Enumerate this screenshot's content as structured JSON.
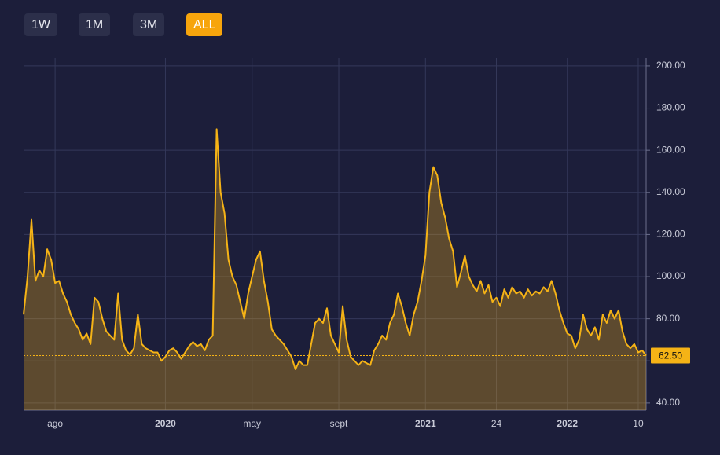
{
  "buttons": [
    "1W",
    "1M",
    "3M",
    "ALL"
  ],
  "active_button": "ALL",
  "chart_data": {
    "type": "area",
    "color": "#f5b316",
    "grid": true,
    "y_axis_side": "right",
    "xlim": [
      0,
      158
    ],
    "ylim": [
      36.6,
      203.7
    ],
    "xticks": [
      {
        "value": 8,
        "label": "ago"
      },
      {
        "value": 36,
        "label": "2020"
      },
      {
        "value": 58,
        "label": "may"
      },
      {
        "value": 80,
        "label": "sept"
      },
      {
        "value": 102,
        "label": "2021"
      },
      {
        "value": 120,
        "label": "24"
      },
      {
        "value": 138,
        "label": "2022"
      },
      {
        "value": 156,
        "label": "10"
      }
    ],
    "yticks": [
      {
        "value": 40,
        "label": "40.00"
      },
      {
        "value": 60,
        "label": "60.00"
      },
      {
        "value": 80,
        "label": "80.00"
      },
      {
        "value": 100,
        "label": "100.00"
      },
      {
        "value": 120,
        "label": "120.00"
      },
      {
        "value": 140,
        "label": "140.00"
      },
      {
        "value": 160,
        "label": "160.00"
      },
      {
        "value": 180,
        "label": "180.00"
      },
      {
        "value": 200,
        "label": "200.00"
      }
    ],
    "x": [
      0,
      1,
      2,
      3,
      4,
      5,
      6,
      7,
      8,
      9,
      10,
      11,
      12,
      13,
      14,
      15,
      16,
      17,
      18,
      19,
      20,
      21,
      22,
      23,
      24,
      25,
      26,
      27,
      28,
      29,
      30,
      31,
      32,
      33,
      34,
      35,
      36,
      37,
      38,
      39,
      40,
      41,
      42,
      43,
      44,
      45,
      46,
      47,
      48,
      49,
      50,
      51,
      52,
      53,
      54,
      55,
      56,
      57,
      58,
      59,
      60,
      61,
      62,
      63,
      64,
      65,
      66,
      67,
      68,
      69,
      70,
      71,
      72,
      73,
      74,
      75,
      76,
      77,
      78,
      79,
      80,
      81,
      82,
      83,
      84,
      85,
      86,
      87,
      88,
      89,
      90,
      91,
      92,
      93,
      94,
      95,
      96,
      97,
      98,
      99,
      100,
      101,
      102,
      103,
      104,
      105,
      106,
      107,
      108,
      109,
      110,
      111,
      112,
      113,
      114,
      115,
      116,
      117,
      118,
      119,
      120,
      121,
      122,
      123,
      124,
      125,
      126,
      127,
      128,
      129,
      130,
      131,
      132,
      133,
      134,
      135,
      136,
      137,
      138,
      139,
      140,
      141,
      142,
      143,
      144,
      145,
      146,
      147,
      148,
      149,
      150,
      151,
      152,
      153,
      154,
      155,
      156,
      157,
      158
    ],
    "values": [
      82,
      100,
      127,
      98,
      103,
      100,
      113,
      108,
      97,
      98,
      92,
      88,
      82,
      78,
      75,
      70,
      73,
      68,
      90,
      88,
      80,
      74,
      72,
      70,
      92,
      70,
      65,
      63,
      66,
      82,
      68,
      66,
      65,
      64,
      64,
      60,
      62,
      65,
      66,
      64,
      61,
      64,
      67,
      69,
      67,
      68,
      65,
      70,
      72,
      170,
      140,
      130,
      108,
      100,
      96,
      88,
      80,
      92,
      100,
      108,
      112,
      98,
      88,
      75,
      72,
      70,
      68,
      65,
      62,
      56,
      60,
      58,
      58,
      68,
      78,
      80,
      78,
      85,
      72,
      68,
      64,
      86,
      70,
      62,
      60,
      58,
      60,
      59,
      58,
      65,
      68,
      72,
      70,
      78,
      82,
      92,
      86,
      78,
      72,
      82,
      88,
      98,
      110,
      140,
      152,
      148,
      135,
      128,
      118,
      112,
      95,
      102,
      110,
      100,
      96,
      93,
      98,
      92,
      96,
      88,
      90,
      86,
      94,
      90,
      95,
      92,
      93,
      90,
      94,
      91,
      93,
      92,
      95,
      93,
      98,
      92,
      84,
      78,
      73,
      72,
      66,
      70,
      82,
      75,
      72,
      76,
      70,
      82,
      78,
      84,
      80,
      84,
      74,
      68,
      66,
      68,
      64,
      65,
      62.5
    ],
    "last_price": 62.5,
    "last_price_label": "62.50"
  }
}
